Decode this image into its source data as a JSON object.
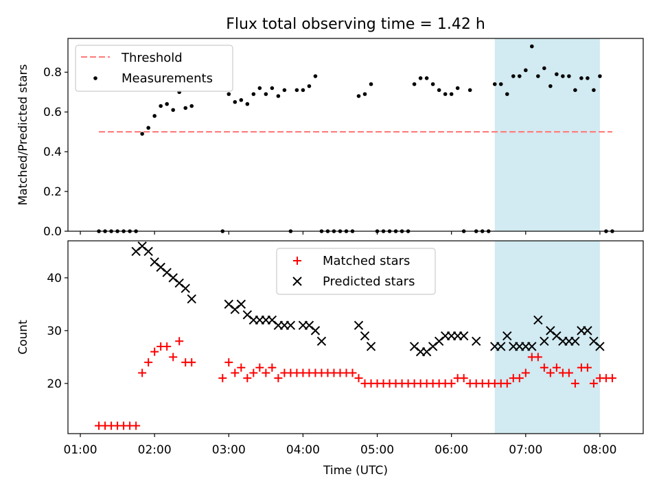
{
  "chart_data": [
    {
      "type": "scatter",
      "title": "Flux total observing time = 1.42 h",
      "ylabel": "Matched/Predicted stars",
      "ylim": [
        0,
        0.97
      ],
      "yticks": [
        "0.0",
        "0.2",
        "0.4",
        "0.6",
        "0.8"
      ],
      "xlim": [
        "00:50",
        "08:35"
      ],
      "grid": false,
      "legend": {
        "placement": "top-left",
        "entries": [
          "Threshold",
          "Measurements"
        ]
      },
      "highlight_region": {
        "x0": "06:35",
        "x1": "08:00",
        "color": "#add8e6"
      },
      "threshold": {
        "name": "Threshold",
        "value": 0.5,
        "x0": "01:15",
        "x1": "08:10",
        "color": "#ff7f7f"
      },
      "series": [
        {
          "name": "Measurements",
          "color": "#000000",
          "marker": "dot",
          "x": [
            "01:15",
            "01:20",
            "01:25",
            "01:30",
            "01:35",
            "01:40",
            "01:45",
            "01:50",
            "01:55",
            "02:00",
            "02:05",
            "02:10",
            "02:15",
            "02:20",
            "02:25",
            "02:30",
            "02:55",
            "03:00",
            "03:05",
            "03:10",
            "03:15",
            "03:20",
            "03:25",
            "03:30",
            "03:35",
            "03:40",
            "03:45",
            "03:50",
            "03:55",
            "04:00",
            "04:05",
            "04:10",
            "04:15",
            "04:20",
            "04:25",
            "04:30",
            "04:35",
            "04:40",
            "04:45",
            "04:50",
            "04:55",
            "05:00",
            "05:05",
            "05:10",
            "05:15",
            "05:20",
            "05:25",
            "05:30",
            "05:35",
            "05:40",
            "05:45",
            "05:50",
            "05:55",
            "06:00",
            "06:05",
            "06:10",
            "06:15",
            "06:20",
            "06:25",
            "06:30",
            "06:35",
            "06:40",
            "06:45",
            "06:50",
            "06:55",
            "07:00",
            "07:05",
            "07:10",
            "07:15",
            "07:20",
            "07:25",
            "07:30",
            "07:35",
            "07:40",
            "07:45",
            "07:50",
            "07:55",
            "08:00",
            "08:05",
            "08:10"
          ],
          "y": [
            0,
            0,
            0,
            0,
            0,
            0,
            0,
            0.49,
            0.52,
            0.58,
            0.63,
            0.64,
            0.61,
            0.7,
            0.62,
            0.63,
            0,
            0.69,
            0.65,
            0.66,
            0.64,
            0.69,
            0.72,
            0.69,
            0.72,
            0.68,
            0.71,
            0,
            0.71,
            0.71,
            0.73,
            0.78,
            0,
            0,
            0,
            0,
            0,
            0,
            0.68,
            0.69,
            0.74,
            0,
            0,
            0,
            0,
            0,
            0,
            0.74,
            0.77,
            0.77,
            0.74,
            0.71,
            0.69,
            0.69,
            0.72,
            0,
            0.71,
            0,
            0,
            0,
            0.74,
            0.74,
            0.69,
            0.78,
            0.78,
            0.81,
            0.93,
            0.78,
            0.82,
            0.73,
            0.79,
            0.78,
            0.78,
            0.71,
            0.77,
            0.77,
            0.71,
            0.78,
            0,
            0
          ]
        }
      ]
    },
    {
      "type": "scatter",
      "xlabel": "Time (UTC)",
      "ylabel": "Count",
      "ylim": [
        10.5,
        47
      ],
      "yticks": [
        "20",
        "30",
        "40"
      ],
      "xlim": [
        "00:50",
        "08:35"
      ],
      "xticks": [
        "01:00",
        "02:00",
        "03:00",
        "04:00",
        "05:00",
        "06:00",
        "07:00",
        "08:00"
      ],
      "grid": false,
      "legend": {
        "placement": "top-center",
        "entries": [
          "Matched stars",
          "Predicted stars"
        ]
      },
      "highlight_region": {
        "x0": "06:35",
        "x1": "08:00",
        "color": "#add8e6"
      },
      "series": [
        {
          "name": "Matched stars",
          "color": "#ff0000",
          "marker": "plus",
          "x": [
            "01:15",
            "01:20",
            "01:25",
            "01:30",
            "01:35",
            "01:40",
            "01:45",
            "01:50",
            "01:55",
            "02:00",
            "02:05",
            "02:10",
            "02:15",
            "02:20",
            "02:25",
            "02:30",
            "02:55",
            "03:00",
            "03:05",
            "03:10",
            "03:15",
            "03:20",
            "03:25",
            "03:30",
            "03:35",
            "03:40",
            "03:45",
            "03:50",
            "03:55",
            "04:00",
            "04:05",
            "04:10",
            "04:15",
            "04:20",
            "04:25",
            "04:30",
            "04:35",
            "04:40",
            "04:45",
            "04:50",
            "04:55",
            "05:00",
            "05:05",
            "05:10",
            "05:15",
            "05:20",
            "05:25",
            "05:30",
            "05:35",
            "05:40",
            "05:45",
            "05:50",
            "05:55",
            "06:00",
            "06:05",
            "06:10",
            "06:15",
            "06:20",
            "06:25",
            "06:30",
            "06:35",
            "06:40",
            "06:45",
            "06:50",
            "06:55",
            "07:00",
            "07:05",
            "07:10",
            "07:15",
            "07:20",
            "07:25",
            "07:30",
            "07:35",
            "07:40",
            "07:45",
            "07:50",
            "07:55",
            "08:00",
            "08:05",
            "08:10"
          ],
          "y": [
            12,
            12,
            12,
            12,
            12,
            12,
            12,
            22,
            24,
            26,
            27,
            27,
            25,
            28,
            24,
            24,
            21,
            24,
            22,
            23,
            21,
            22,
            23,
            22,
            23,
            21,
            22,
            22,
            22,
            22,
            22,
            22,
            22,
            22,
            22,
            22,
            22,
            22,
            21,
            20,
            20,
            20,
            20,
            20,
            20,
            20,
            20,
            20,
            20,
            20,
            20,
            20,
            20,
            20,
            21,
            21,
            20,
            20,
            20,
            20,
            20,
            20,
            20,
            21,
            21,
            22,
            25,
            25,
            23,
            22,
            23,
            22,
            22,
            20,
            23,
            23,
            20,
            21,
            21,
            21
          ]
        },
        {
          "name": "Predicted stars",
          "color": "#000000",
          "marker": "x",
          "x": [
            "01:45",
            "01:50",
            "01:55",
            "02:00",
            "02:05",
            "02:10",
            "02:15",
            "02:20",
            "02:25",
            "02:30",
            "03:00",
            "03:05",
            "03:10",
            "03:15",
            "03:20",
            "03:25",
            "03:30",
            "03:35",
            "03:40",
            "03:45",
            "03:50",
            "04:00",
            "04:05",
            "04:10",
            "04:15",
            "04:45",
            "04:50",
            "04:55",
            "05:30",
            "05:35",
            "05:40",
            "05:45",
            "05:50",
            "05:55",
            "06:00",
            "06:05",
            "06:10",
            "06:20",
            "06:35",
            "06:40",
            "06:45",
            "06:50",
            "06:55",
            "07:00",
            "07:05",
            "07:10",
            "07:15",
            "07:20",
            "07:25",
            "07:30",
            "07:35",
            "07:40",
            "07:45",
            "07:50",
            "07:55",
            "08:00"
          ],
          "y": [
            45,
            46,
            45,
            43,
            42,
            41,
            40,
            39,
            38,
            36,
            35,
            34,
            35,
            33,
            32,
            32,
            32,
            32,
            31,
            31,
            31,
            31,
            31,
            30,
            28,
            31,
            29,
            27,
            27,
            26,
            26,
            27,
            28,
            29,
            29,
            29,
            29,
            28,
            27,
            27,
            29,
            27,
            27,
            27,
            27,
            32,
            28,
            30,
            29,
            28,
            28,
            28,
            30,
            30,
            28,
            27
          ]
        }
      ]
    }
  ]
}
